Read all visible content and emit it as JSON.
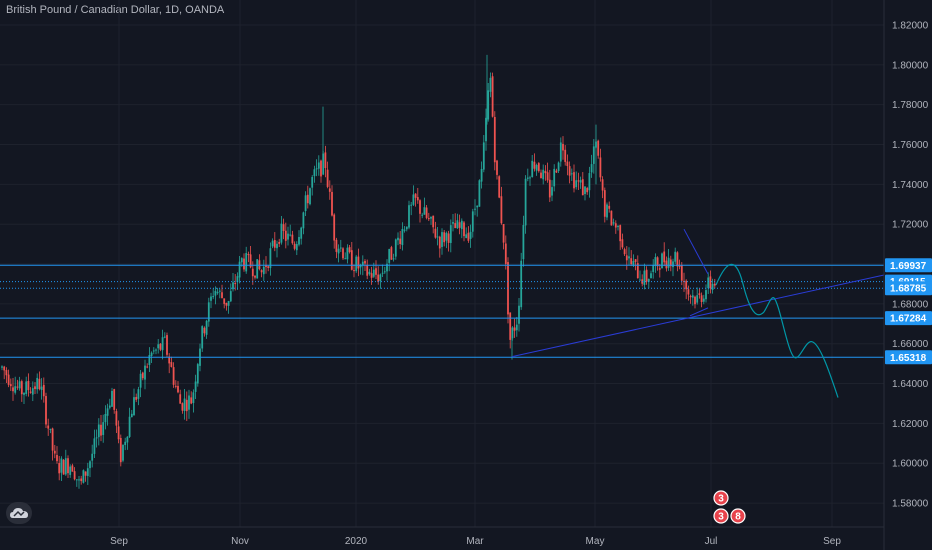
{
  "header": {
    "title": "British Pound / Canadian Dollar, 1D, OANDA"
  },
  "colors": {
    "background": "#131722",
    "grid": "#1e222d",
    "up": "#26a69a",
    "down": "#ef5350",
    "level": "#2196f3",
    "badge": "#2196f3",
    "projection": "#0097a7",
    "trendline": "#2a3cd6",
    "axis_text": "#b2b5be"
  },
  "icons": {
    "logo": "tradingview-cloud-icon",
    "events": "earnings-event-icon"
  },
  "chart_data": {
    "type": "candlestick",
    "symbol": "British Pound / Canadian Dollar",
    "interval": "1D",
    "source": "OANDA",
    "ylim": [
      1.57,
      1.83
    ],
    "y_ticks": [
      "1.82000",
      "1.80000",
      "1.78000",
      "1.76000",
      "1.74000",
      "1.72000",
      "1.70000",
      "1.68000",
      "1.66000",
      "1.64000",
      "1.62000",
      "1.60000",
      "1.58000"
    ],
    "x_ticks": [
      "Sep",
      "Nov",
      "2020",
      "Mar",
      "May",
      "Jul",
      "Sep"
    ],
    "grid": true,
    "levels": [
      {
        "value": 1.69937,
        "label": "1.69937",
        "style": "solid"
      },
      {
        "value": 1.69115,
        "label": "1.69115",
        "style": "dotted"
      },
      {
        "value": 1.68785,
        "label": "1.68785",
        "style": "dotted"
      },
      {
        "value": 1.67284,
        "label": "1.67284",
        "style": "solid"
      },
      {
        "value": 1.65318,
        "label": "1.65318",
        "style": "solid"
      }
    ],
    "events": [
      {
        "label": "3"
      },
      {
        "label": "3"
      },
      {
        "label": "8"
      }
    ]
  }
}
